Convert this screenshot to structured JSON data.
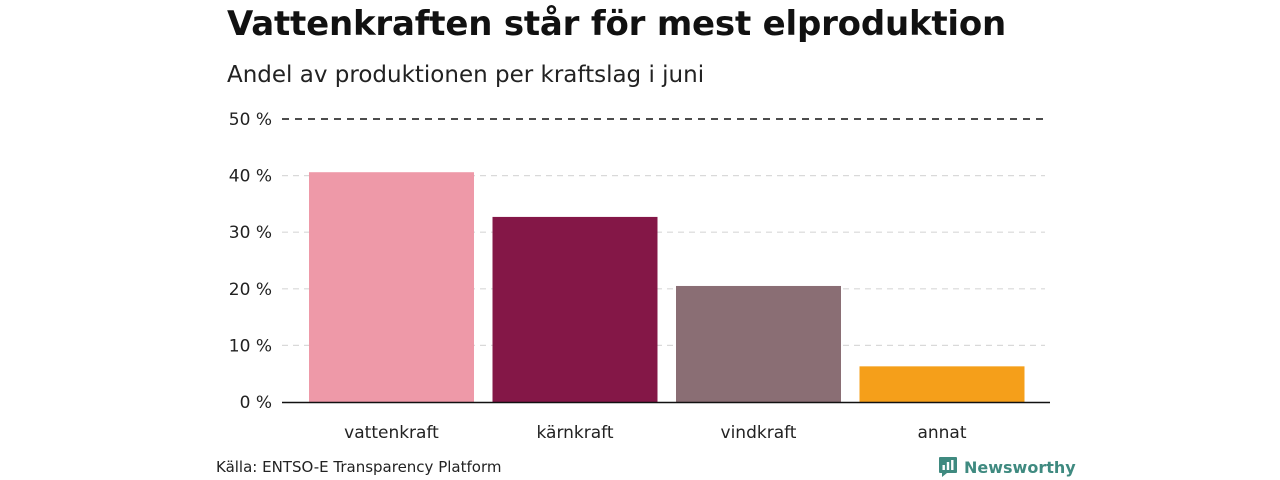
{
  "header": {
    "title": "Vattenkraften står för mest elproduktion",
    "subtitle": "Andel av produktionen per kraftslag i juni"
  },
  "footer": {
    "source": "Källa: ENTSO-E Transparency Platform",
    "brand": "Newsworthy"
  },
  "colors": {
    "vattenkraft": "#ee99a8",
    "kärnkraft": "#841747",
    "vindkraft": "#8a6e74",
    "annat": "#f59f1a",
    "brand": "#3f8a80"
  },
  "chart_data": {
    "type": "bar",
    "title": "Vattenkraften står för mest elproduktion",
    "subtitle": "Andel av produktionen per kraftslag i juni",
    "categories": [
      "vattenkraft",
      "kärnkraft",
      "vindkraft",
      "annat"
    ],
    "values": [
      40.6,
      32.7,
      20.5,
      6.3
    ],
    "unit": "%",
    "ylim": [
      0,
      50
    ],
    "yticks": [
      0,
      10,
      20,
      30,
      40,
      50
    ],
    "ytick_labels": [
      "0 %",
      "10 %",
      "20 %",
      "30 %",
      "40 %",
      "50 %"
    ],
    "xlabel": "",
    "ylabel": "",
    "grid": true,
    "legend": "none"
  }
}
